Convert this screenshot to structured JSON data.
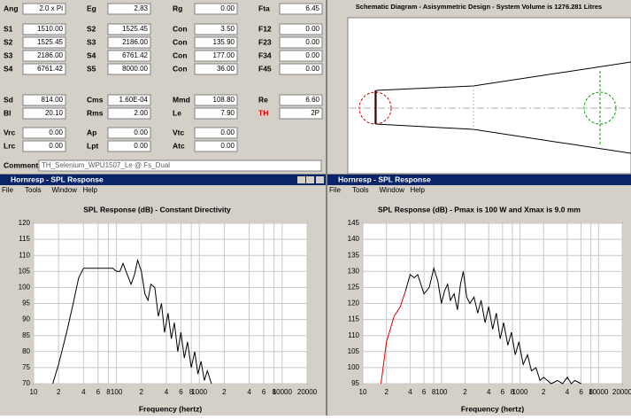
{
  "parameters": [
    [
      {
        "label": "Ang",
        "value": "2.0 x Pi"
      },
      {
        "label": "Eg",
        "value": "2.83"
      },
      {
        "label": "Rg",
        "value": "0.00"
      },
      {
        "label": "Fta",
        "value": "6.45"
      }
    ],
    [
      {
        "label": "S1",
        "value": "1510.00"
      },
      {
        "label": "S2",
        "value": "1525.45"
      },
      {
        "label": "Con",
        "value": "3.50"
      },
      {
        "label": "F12",
        "value": "0.00"
      }
    ],
    [
      {
        "label": "S2",
        "value": "1525.45"
      },
      {
        "label": "S3",
        "value": "2186.00"
      },
      {
        "label": "Con",
        "value": "135.90"
      },
      {
        "label": "F23",
        "value": "0.00"
      }
    ],
    [
      {
        "label": "S3",
        "value": "2186.00"
      },
      {
        "label": "S4",
        "value": "6761.42"
      },
      {
        "label": "Con",
        "value": "177.00"
      },
      {
        "label": "F34",
        "value": "0.00"
      }
    ],
    [
      {
        "label": "S4",
        "value": "6761.42"
      },
      {
        "label": "S5",
        "value": "8000.00"
      },
      {
        "label": "Con",
        "value": "36.00"
      },
      {
        "label": "F45",
        "value": "0.00"
      }
    ],
    [
      {
        "label": "Sd",
        "value": "814.00"
      },
      {
        "label": "Cms",
        "value": "1.60E-04"
      },
      {
        "label": "Mmd",
        "value": "108.80"
      },
      {
        "label": "Re",
        "value": "6.60"
      }
    ],
    [
      {
        "label": "Bl",
        "value": "20.10"
      },
      {
        "label": "Rms",
        "value": "2.00"
      },
      {
        "label": "Le",
        "value": "7.90"
      },
      {
        "label": "TH",
        "value": "2P",
        "color": "#e00000"
      }
    ],
    [
      {
        "label": "Vrc",
        "value": "0.00"
      },
      {
        "label": "Ap",
        "value": "0.00"
      },
      {
        "label": "Vtc",
        "value": "0.00"
      }
    ],
    [
      {
        "label": "Lrc",
        "value": "0.00"
      },
      {
        "label": "Lpt",
        "value": "0.00"
      },
      {
        "label": "Atc",
        "value": "0.00"
      }
    ]
  ],
  "comment": {
    "label": "Comment",
    "value": "TH_Selenium_WPU1507_Le @ Fs_Dual"
  },
  "schematic": {
    "title": "Schematic Diagram - Asisymmetric Design - System Volume is 1276.281 Litres"
  },
  "windows": [
    {
      "title": "Hornresp - SPL Response",
      "menu": [
        "File",
        "Tools",
        "Window",
        "Help"
      ]
    },
    {
      "title": "Hornresp - SPL Response",
      "menu": [
        "File",
        "Tools",
        "Window",
        "Help"
      ]
    }
  ],
  "chart_data": [
    {
      "type": "line",
      "title": "SPL Response (dB) - Constant Directivity",
      "x_label": "Frequency (hertz)",
      "xscale": "log",
      "grid": true,
      "xlim": [
        10,
        20000
      ],
      "xticks": [
        10,
        {
          "value": 20,
          "label": "2"
        },
        {
          "value": 40,
          "label": "4"
        },
        {
          "value": 60,
          "label": "6"
        },
        {
          "value": 80,
          "label": "8"
        },
        100,
        {
          "value": 200,
          "label": "2"
        },
        {
          "value": 400,
          "label": "4"
        },
        {
          "value": 600,
          "label": "6"
        },
        {
          "value": 800,
          "label": "8"
        },
        1000,
        {
          "value": 2000,
          "label": "2"
        },
        {
          "value": 4000,
          "label": "4"
        },
        {
          "value": 6000,
          "label": "6"
        },
        {
          "value": 8000,
          "label": "8"
        },
        10000,
        20000
      ],
      "ylim": [
        70,
        120
      ],
      "yticks": [
        70,
        75,
        80,
        85,
        90,
        95,
        100,
        105,
        110,
        115,
        120
      ],
      "series": [
        {
          "color": "#000000",
          "x": [
            17,
            20,
            25,
            30,
            35,
            40,
            50,
            70,
            90,
            100,
            110,
            120,
            135,
            150,
            165,
            180,
            200,
            220,
            240,
            260,
            290,
            320,
            350,
            380,
            420,
            460,
            500,
            550,
            600,
            660,
            720,
            800,
            880,
            960,
            1050,
            1150,
            1250,
            1400
          ],
          "values": [
            70,
            76,
            86,
            95,
            103,
            106,
            106,
            106,
            106,
            105,
            105,
            107.5,
            104,
            101,
            104,
            108.5,
            105,
            98,
            96,
            101,
            100,
            91,
            95,
            86,
            92,
            84,
            89,
            80,
            86,
            78,
            83,
            75,
            80,
            73,
            77,
            71,
            74,
            70
          ]
        }
      ]
    },
    {
      "type": "line",
      "title": "SPL Response (dB) - Pmax is 100 W and Xmax is 9.0 mm",
      "x_label": "Frequency (hertz)",
      "xscale": "log",
      "grid": true,
      "xlim": [
        10,
        20000
      ],
      "xticks": [
        10,
        {
          "value": 20,
          "label": "2"
        },
        {
          "value": 40,
          "label": "4"
        },
        {
          "value": 60,
          "label": "6"
        },
        {
          "value": 80,
          "label": "8"
        },
        100,
        {
          "value": 200,
          "label": "2"
        },
        {
          "value": 400,
          "label": "4"
        },
        {
          "value": 600,
          "label": "6"
        },
        {
          "value": 800,
          "label": "8"
        },
        1000,
        {
          "value": 2000,
          "label": "2"
        },
        {
          "value": 4000,
          "label": "4"
        },
        {
          "value": 6000,
          "label": "6"
        },
        {
          "value": 8000,
          "label": "8"
        },
        10000,
        20000
      ],
      "ylim": [
        95,
        145
      ],
      "yticks": [
        95,
        100,
        105,
        110,
        115,
        120,
        125,
        130,
        135,
        140,
        145
      ],
      "series": [
        {
          "color": "#e00000",
          "x": [
            17,
            20,
            25,
            30,
            35
          ],
          "values": [
            95,
            108,
            116,
            119,
            124
          ]
        },
        {
          "color": "#000000",
          "x": [
            35,
            40,
            45,
            50,
            60,
            70,
            80,
            90,
            100,
            110,
            120,
            130,
            145,
            160,
            175,
            190,
            210,
            230,
            260,
            290,
            320,
            360,
            400,
            450,
            500,
            560,
            620,
            700,
            780,
            870,
            970,
            1100,
            1250,
            1400,
            1600,
            1800,
            2000,
            2500,
            3000,
            3500,
            4000,
            4500,
            5000,
            6000
          ],
          "values": [
            124,
            129,
            128,
            129,
            123,
            125,
            131,
            127,
            120,
            124,
            126,
            121,
            123,
            118,
            126,
            130,
            122,
            120,
            122,
            117,
            121,
            114,
            119,
            112,
            117,
            109,
            114,
            107,
            111,
            104,
            108,
            101,
            104,
            99,
            100,
            96,
            97,
            95,
            96,
            95,
            97,
            95,
            96,
            95
          ]
        }
      ]
    }
  ]
}
